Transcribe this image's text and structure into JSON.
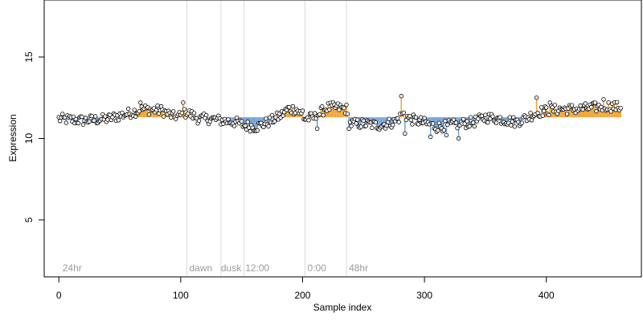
{
  "chart_data": {
    "type": "scatter",
    "xlabel": "Sample index",
    "ylabel": "Expression",
    "xlim": [
      -12,
      478
    ],
    "ylim": [
      1.5,
      18.5
    ],
    "x_ticks": [
      0,
      100,
      200,
      300,
      400
    ],
    "y_ticks": [
      5,
      10,
      15
    ],
    "baseline": 11.3,
    "colors": {
      "above": "#f2a83a",
      "below": "#7aa7d8",
      "point_edge": "#000000",
      "point_fill": "#ffffff",
      "divider": "#d9d9d9",
      "phase_text": "#9a9a9a"
    },
    "dividers": [
      105,
      133,
      152,
      202,
      236
    ],
    "phase_labels": [
      {
        "x": 3,
        "text": "24hr"
      },
      {
        "x": 107,
        "text": "dawn"
      },
      {
        "x": 133,
        "text": "dusk"
      },
      {
        "x": 153,
        "text": "12:00"
      },
      {
        "x": 204,
        "text": "0:00"
      },
      {
        "x": 238,
        "text": "48hr"
      }
    ],
    "trend": [
      [
        0,
        11.2
      ],
      [
        20,
        11.1
      ],
      [
        40,
        11.2
      ],
      [
        60,
        11.6
      ],
      [
        70,
        11.8
      ],
      [
        85,
        11.7
      ],
      [
        95,
        11.3
      ],
      [
        100,
        11.4
      ],
      [
        105,
        11.6
      ],
      [
        115,
        11.2
      ],
      [
        125,
        11.2
      ],
      [
        133,
        11.1
      ],
      [
        145,
        11.0
      ],
      [
        152,
        10.8
      ],
      [
        162,
        10.7
      ],
      [
        172,
        11.0
      ],
      [
        182,
        11.4
      ],
      [
        188,
        11.8
      ],
      [
        195,
        11.8
      ],
      [
        202,
        11.2
      ],
      [
        210,
        11.3
      ],
      [
        220,
        11.9
      ],
      [
        228,
        11.9
      ],
      [
        236,
        11.8
      ],
      [
        238,
        10.9
      ],
      [
        250,
        10.9
      ],
      [
        262,
        10.8
      ],
      [
        275,
        11.0
      ],
      [
        283,
        11.5
      ],
      [
        288,
        11.2
      ],
      [
        298,
        11.0
      ],
      [
        310,
        10.7
      ],
      [
        320,
        10.8
      ],
      [
        330,
        10.9
      ],
      [
        340,
        11.0
      ],
      [
        350,
        11.3
      ],
      [
        362,
        11.2
      ],
      [
        375,
        11.0
      ],
      [
        385,
        11.3
      ],
      [
        392,
        11.6
      ],
      [
        400,
        11.7
      ],
      [
        412,
        11.8
      ],
      [
        425,
        11.8
      ],
      [
        440,
        11.9
      ],
      [
        450,
        12.0
      ],
      [
        462,
        11.9
      ]
    ],
    "jitter": 0.32,
    "spikes": [
      {
        "x": 67,
        "y": 12.2
      },
      {
        "x": 96,
        "y": 11.2
      },
      {
        "x": 102,
        "y": 12.2
      },
      {
        "x": 200,
        "y": 11.7
      },
      {
        "x": 212,
        "y": 10.6
      },
      {
        "x": 281,
        "y": 12.6
      },
      {
        "x": 284,
        "y": 10.3
      },
      {
        "x": 305,
        "y": 10.1
      },
      {
        "x": 318,
        "y": 10.2
      },
      {
        "x": 328,
        "y": 10.0
      },
      {
        "x": 392,
        "y": 12.5
      },
      {
        "x": 403,
        "y": 12.2
      },
      {
        "x": 447,
        "y": 12.4
      }
    ],
    "n_points": 462
  }
}
